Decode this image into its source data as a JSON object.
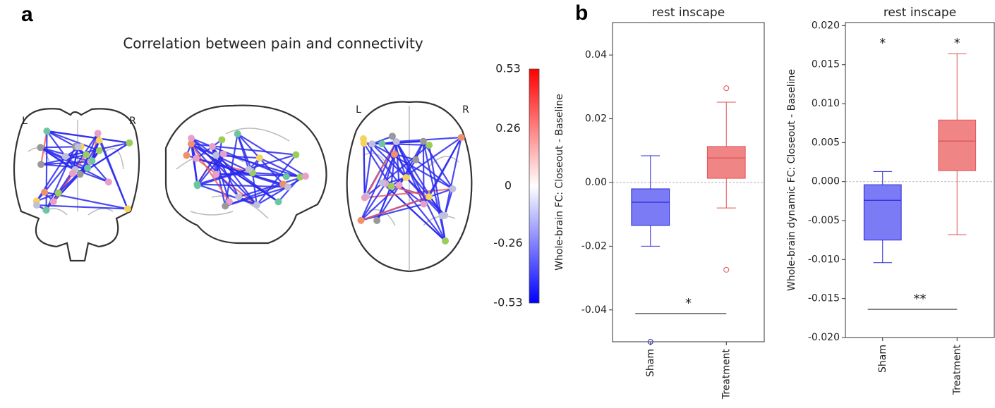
{
  "chart_data": [
    {
      "type": "connectome",
      "panel_label": "a",
      "title": "Correlation between pain and connectivity",
      "orientation_labels": [
        [
          "L",
          "R"
        ],
        [
          "L",
          "R"
        ]
      ],
      "colorbar": {
        "colors": [
          "#0000ff",
          "#ffffff",
          "#ff0000"
        ],
        "lim": [
          -0.53,
          0.53
        ],
        "ticks": [
          0.53,
          0.26,
          0,
          -0.26,
          -0.53
        ]
      }
    },
    {
      "type": "box",
      "panel_label": "b",
      "title": "rest inscape",
      "ylabel": "Whole-brain FC: Closeout - Baseline",
      "categories": [
        "Sham",
        "Treatment"
      ],
      "boxes": [
        {
          "whislo": -0.02,
          "q1": -0.0135,
          "med": -0.0062,
          "q3": -0.002,
          "whishi": 0.0084,
          "fliers": [
            -0.05
          ]
        },
        {
          "whislo": -0.008,
          "q1": 0.0013,
          "med": 0.0077,
          "q3": 0.0113,
          "whishi": 0.0252,
          "fliers": [
            0.0296,
            -0.0274
          ]
        }
      ],
      "fill_colors": [
        "#7b7bf5",
        "#f08585"
      ],
      "edge_colors": [
        "#2b2bd6",
        "#e05555"
      ],
      "ylim": [
        -0.05,
        0.0502
      ],
      "yticks": [
        0.04,
        0.02,
        {
          "value": 0,
          "label": "0.00"
        },
        -0.02,
        -0.04
      ],
      "hline": 0,
      "brackets": [
        {
          "from": 0,
          "to": 1,
          "label": "*"
        }
      ]
    },
    {
      "type": "box",
      "title": "rest inscape",
      "ylabel": "Whole-brain dynamic FC: Closeout - Baseline",
      "categories": [
        "Sham",
        "Treatment"
      ],
      "boxes": [
        {
          "whislo": -0.0104,
          "q1": -0.0075,
          "med": -0.0024,
          "q3": -0.0004,
          "whishi": 0.0013,
          "fliers": []
        },
        {
          "whislo": -0.0068,
          "q1": 0.0014,
          "med": 0.0052,
          "q3": 0.0079,
          "whishi": 0.0164,
          "fliers": []
        }
      ],
      "fill_colors": [
        "#7b7bf5",
        "#f08585"
      ],
      "edge_colors": [
        "#2b2bd6",
        "#e05555"
      ],
      "ylim": [
        -0.02,
        0.0204
      ],
      "yticks": [
        {
          "value": 0.02,
          "label": "0.020"
        },
        0.015,
        {
          "value": 0.01,
          "label": "0.010"
        },
        0.005,
        {
          "value": 0,
          "label": "0.000"
        },
        -0.005,
        {
          "value": -0.01,
          "label": "-0.010"
        },
        -0.015,
        {
          "value": -0.02,
          "label": "-0.020"
        }
      ],
      "hline": 0,
      "brackets": [
        {
          "from": 0,
          "to": 1,
          "label": "**"
        }
      ],
      "top_labels": [
        "*",
        "*"
      ]
    }
  ]
}
